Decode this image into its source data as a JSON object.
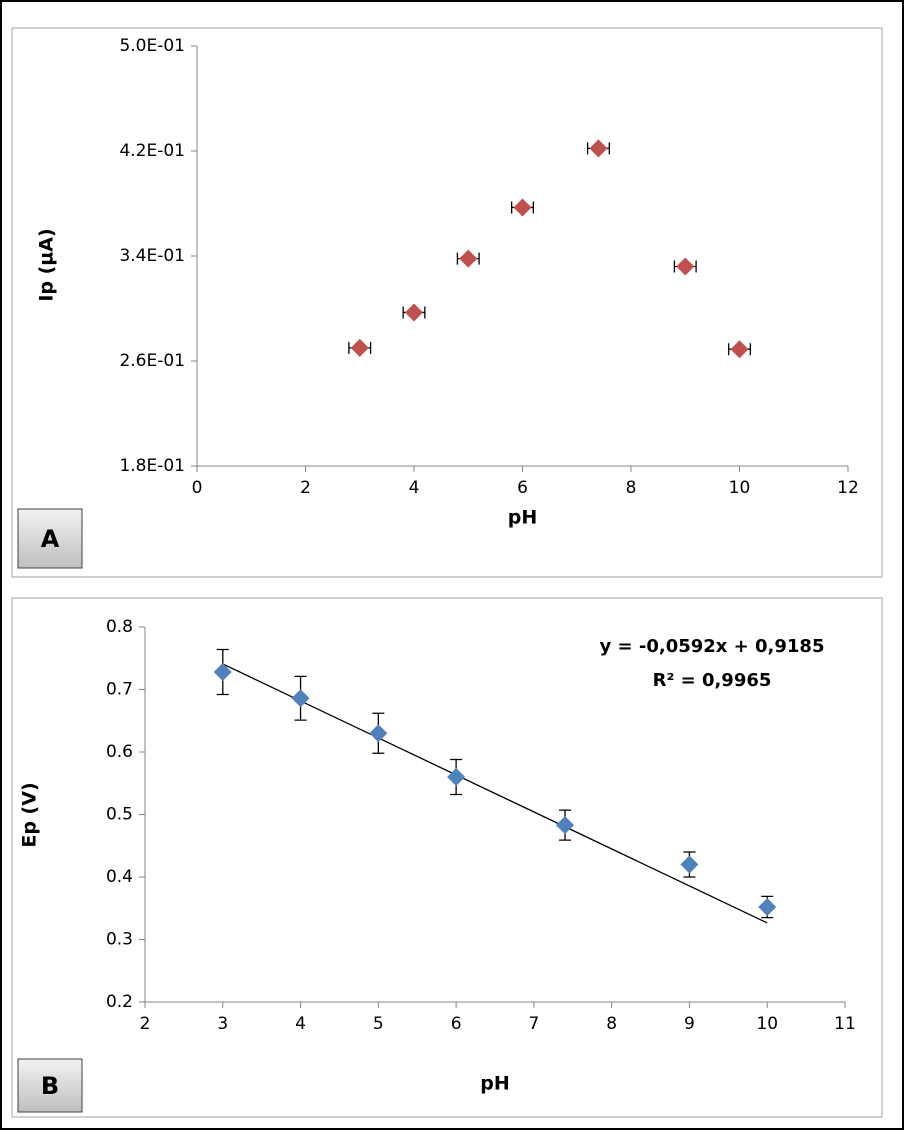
{
  "chart_data": [
    {
      "type": "scatter",
      "panel": "A",
      "x_label": "pH",
      "y_label": "Ip (µA)",
      "color": "#c0504d",
      "x": [
        3,
        4,
        5,
        6,
        7.4,
        9,
        10
      ],
      "values": [
        0.27,
        0.297,
        0.338,
        0.377,
        0.422,
        0.332,
        0.269
      ],
      "xerr": [
        0.2,
        0.2,
        0.2,
        0.2,
        0.2,
        0.2,
        0.2
      ],
      "xlim": [
        0,
        12
      ],
      "xticks": [
        0,
        2,
        4,
        6,
        8,
        10,
        12
      ],
      "ylim": [
        0.18,
        0.5
      ],
      "yticks": [
        {
          "value": 0.18,
          "label": "1.8E-01"
        },
        {
          "value": 0.26,
          "label": "2.6E-01"
        },
        {
          "value": 0.34,
          "label": "3.4E-01"
        },
        {
          "value": 0.42,
          "label": "4.2E-01"
        },
        {
          "value": 0.5,
          "label": "5.0E-01"
        }
      ]
    },
    {
      "type": "scatter",
      "panel": "B",
      "x_label": "pH",
      "y_label": "Ep (V)",
      "color": "#4f81bd",
      "x": [
        3,
        4,
        5,
        6,
        7.4,
        9,
        10
      ],
      "values": [
        0.728,
        0.686,
        0.63,
        0.56,
        0.483,
        0.42,
        0.352
      ],
      "yerr": [
        0.036,
        0.035,
        0.032,
        0.028,
        0.024,
        0.02,
        0.017
      ],
      "xlim": [
        2,
        11
      ],
      "xticks": [
        2,
        3,
        4,
        5,
        6,
        7,
        8,
        9,
        10,
        11
      ],
      "ylim": [
        0.2,
        0.8
      ],
      "yticks": [
        0.2,
        0.3,
        0.4,
        0.5,
        0.6,
        0.7,
        0.8
      ],
      "trendline": {
        "slope": -0.0592,
        "intercept": 0.9185
      },
      "annotations": [
        "y = -0,0592x + 0,9185",
        "R² = 0,9965"
      ]
    }
  ]
}
